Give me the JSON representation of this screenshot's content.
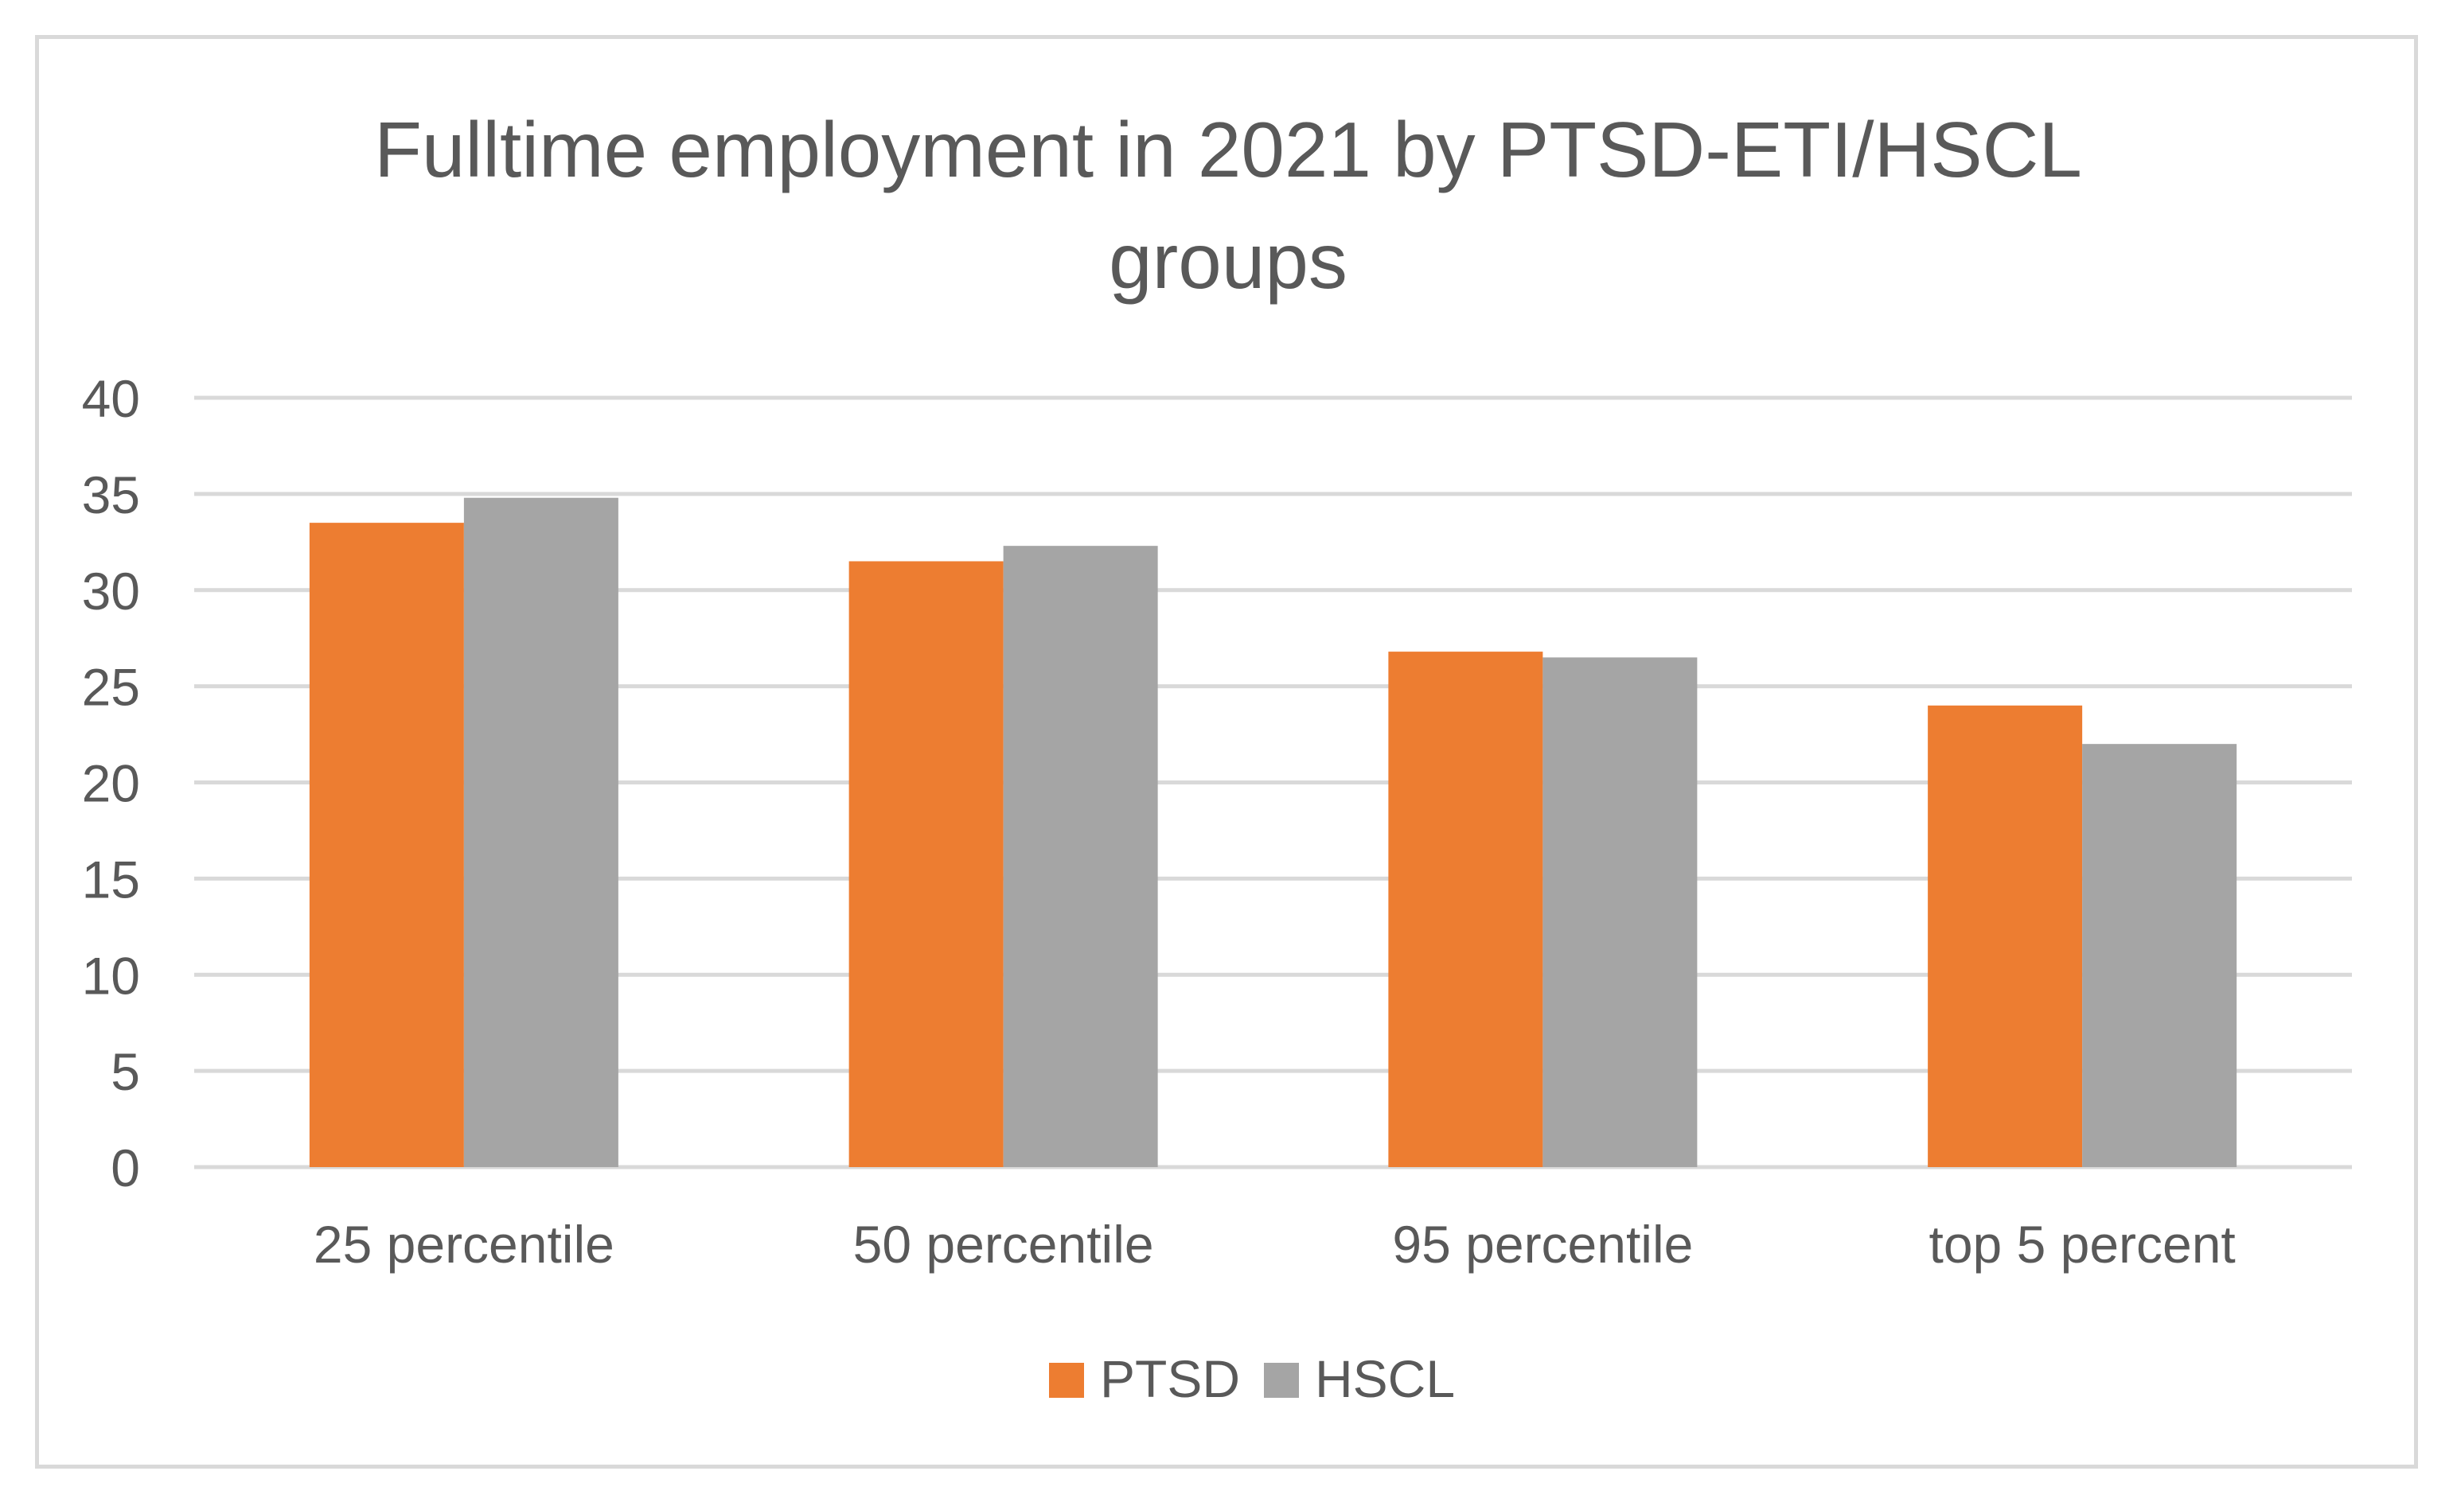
{
  "chart_data": {
    "type": "bar",
    "title": "Fulltime employment in 2021 by PTSD-ETI/HSCL groups",
    "title_lines": [
      "Fulltime employment in 2021 by PTSD-ETI/HSCL",
      "groups"
    ],
    "categories": [
      "25 percentile",
      "50 percentile",
      "95 percentile",
      "top 5 percent"
    ],
    "series": [
      {
        "name": "PTSD",
        "color": "#ED7D31",
        "values": [
          33.5,
          31.5,
          26.8,
          24.0
        ]
      },
      {
        "name": "HSCL",
        "color": "#A5A5A5",
        "values": [
          34.8,
          32.3,
          26.5,
          22.0
        ]
      }
    ],
    "ylim": [
      0,
      40
    ],
    "yticks": [
      0,
      5,
      10,
      15,
      20,
      25,
      30,
      35,
      40
    ],
    "xlabel": "",
    "ylabel": "",
    "grid": true,
    "legend_position": "bottom"
  },
  "colors": {
    "grid": "#d9d9d9",
    "text": "#595959",
    "border": "#d9d9d9"
  }
}
